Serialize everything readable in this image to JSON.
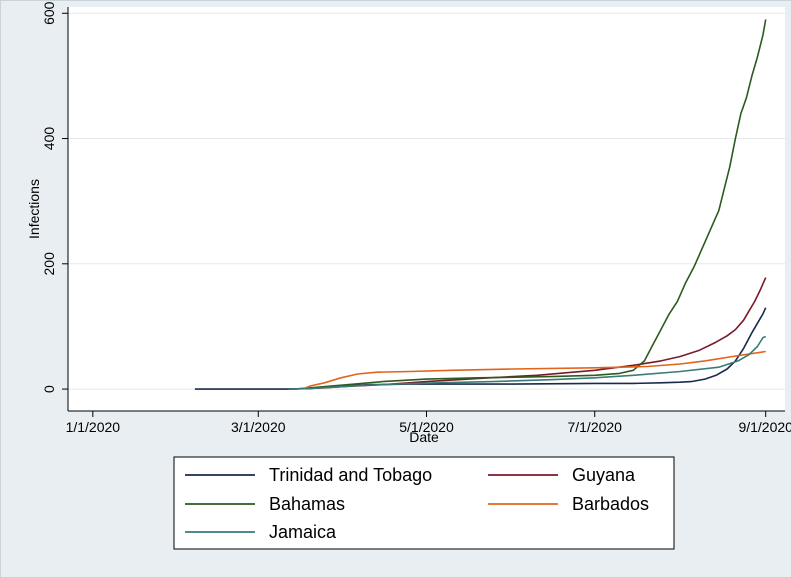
{
  "chart_data": {
    "type": "line",
    "xlabel": "Date",
    "ylabel": "Infections",
    "x_ticks": [
      "1/1/2020",
      "3/1/2020",
      "5/1/2020",
      "7/1/2020",
      "9/1/2020"
    ],
    "y_ticks": [
      0,
      200,
      400,
      600
    ],
    "ylim": [
      -35,
      610
    ],
    "xlim": [
      "2019-12-23",
      "2020-09-08"
    ],
    "grid": true,
    "legend_position": "bottom",
    "series": [
      {
        "name": "Trinidad and Tobago",
        "color": "#1a2a4f",
        "points": [
          [
            "2020-02-07",
            0
          ],
          [
            "2020-03-12",
            0
          ],
          [
            "2020-03-20",
            1
          ],
          [
            "2020-03-25",
            3
          ],
          [
            "2020-04-01",
            5
          ],
          [
            "2020-04-10",
            7
          ],
          [
            "2020-04-25",
            8
          ],
          [
            "2020-05-10",
            8
          ],
          [
            "2020-06-01",
            8
          ],
          [
            "2020-07-01",
            9
          ],
          [
            "2020-07-15",
            9
          ],
          [
            "2020-07-25",
            10
          ],
          [
            "2020-08-01",
            11
          ],
          [
            "2020-08-05",
            12
          ],
          [
            "2020-08-10",
            16
          ],
          [
            "2020-08-14",
            22
          ],
          [
            "2020-08-18",
            32
          ],
          [
            "2020-08-21",
            45
          ],
          [
            "2020-08-24",
            65
          ],
          [
            "2020-08-27",
            90
          ],
          [
            "2020-08-29",
            105
          ],
          [
            "2020-08-31",
            120
          ],
          [
            "2020-09-01",
            130
          ]
        ]
      },
      {
        "name": "Guyana",
        "color": "#7a1a2a",
        "points": [
          [
            "2020-03-12",
            0
          ],
          [
            "2020-03-20",
            1
          ],
          [
            "2020-03-25",
            2
          ],
          [
            "2020-04-01",
            4
          ],
          [
            "2020-04-15",
            7
          ],
          [
            "2020-05-01",
            12
          ],
          [
            "2020-05-20",
            17
          ],
          [
            "2020-06-10",
            22
          ],
          [
            "2020-07-01",
            30
          ],
          [
            "2020-07-15",
            38
          ],
          [
            "2020-07-25",
            45
          ],
          [
            "2020-08-01",
            52
          ],
          [
            "2020-08-08",
            62
          ],
          [
            "2020-08-14",
            75
          ],
          [
            "2020-08-18",
            85
          ],
          [
            "2020-08-21",
            95
          ],
          [
            "2020-08-24",
            110
          ],
          [
            "2020-08-26",
            125
          ],
          [
            "2020-08-28",
            140
          ],
          [
            "2020-08-30",
            158
          ],
          [
            "2020-09-01",
            178
          ]
        ]
      },
      {
        "name": "Bahamas",
        "color": "#2d5a1e",
        "points": [
          [
            "2020-03-14",
            0
          ],
          [
            "2020-03-20",
            2
          ],
          [
            "2020-03-28",
            5
          ],
          [
            "2020-04-05",
            8
          ],
          [
            "2020-04-15",
            12
          ],
          [
            "2020-05-01",
            16
          ],
          [
            "2020-05-20",
            18
          ],
          [
            "2020-06-15",
            20
          ],
          [
            "2020-07-01",
            22
          ],
          [
            "2020-07-10",
            25
          ],
          [
            "2020-07-15",
            30
          ],
          [
            "2020-07-19",
            45
          ],
          [
            "2020-07-22",
            70
          ],
          [
            "2020-07-25",
            95
          ],
          [
            "2020-07-28",
            120
          ],
          [
            "2020-07-31",
            140
          ],
          [
            "2020-08-03",
            170
          ],
          [
            "2020-08-06",
            195
          ],
          [
            "2020-08-09",
            225
          ],
          [
            "2020-08-12",
            255
          ],
          [
            "2020-08-15",
            285
          ],
          [
            "2020-08-17",
            320
          ],
          [
            "2020-08-19",
            355
          ],
          [
            "2020-08-21",
            400
          ],
          [
            "2020-08-23",
            440
          ],
          [
            "2020-08-25",
            465
          ],
          [
            "2020-08-27",
            500
          ],
          [
            "2020-08-29",
            530
          ],
          [
            "2020-08-31",
            565
          ],
          [
            "2020-09-01",
            590
          ]
        ]
      },
      {
        "name": "Barbados",
        "color": "#e0651a",
        "points": [
          [
            "2020-03-17",
            0
          ],
          [
            "2020-03-20",
            5
          ],
          [
            "2020-03-25",
            10
          ],
          [
            "2020-03-31",
            18
          ],
          [
            "2020-04-06",
            24
          ],
          [
            "2020-04-13",
            27
          ],
          [
            "2020-04-25",
            28
          ],
          [
            "2020-05-10",
            30
          ],
          [
            "2020-06-01",
            32
          ],
          [
            "2020-07-01",
            34
          ],
          [
            "2020-07-20",
            36
          ],
          [
            "2020-08-01",
            40
          ],
          [
            "2020-08-10",
            45
          ],
          [
            "2020-08-20",
            52
          ],
          [
            "2020-09-01",
            60
          ]
        ]
      },
      {
        "name": "Jamaica",
        "color": "#3a7a78",
        "points": [
          [
            "2020-03-12",
            0
          ],
          [
            "2020-03-20",
            1
          ],
          [
            "2020-03-28",
            3
          ],
          [
            "2020-04-08",
            6
          ],
          [
            "2020-04-20",
            8
          ],
          [
            "2020-05-05",
            10
          ],
          [
            "2020-05-25",
            12
          ],
          [
            "2020-06-15",
            15
          ],
          [
            "2020-07-01",
            18
          ],
          [
            "2020-07-15",
            22
          ],
          [
            "2020-08-01",
            28
          ],
          [
            "2020-08-15",
            35
          ],
          [
            "2020-08-22",
            45
          ],
          [
            "2020-08-26",
            55
          ],
          [
            "2020-08-29",
            68
          ],
          [
            "2020-08-31",
            82
          ],
          [
            "2020-09-01",
            84
          ]
        ]
      }
    ]
  }
}
